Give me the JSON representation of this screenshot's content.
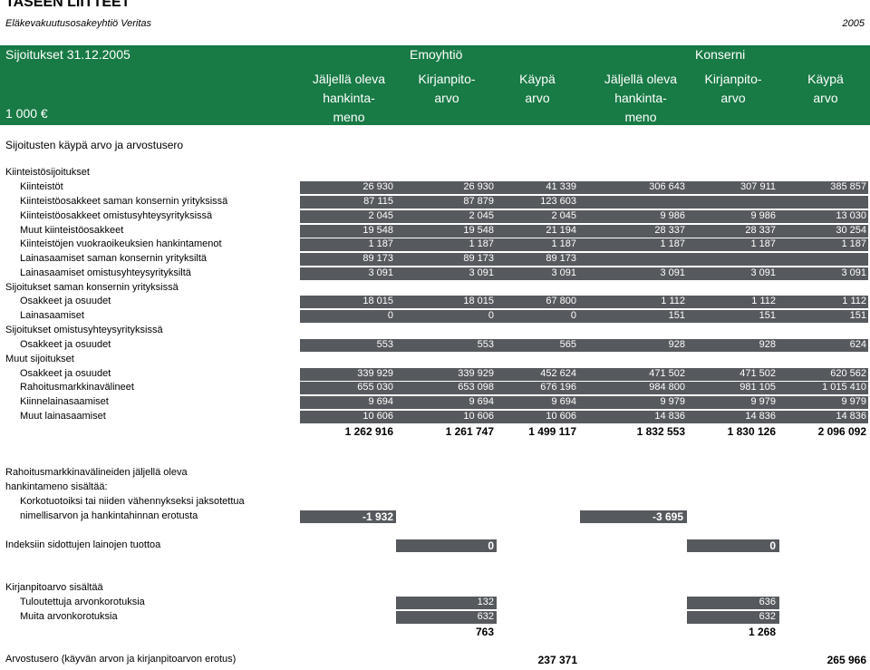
{
  "header": {
    "title": "TASEEN LIITTEET",
    "subtitle": "Eläkevakuutusosakeyhtiö Veritas",
    "year": "2005"
  },
  "table_header": {
    "title": "Sijoitukset 31.12.2005",
    "group_parent": "Emoyhtiö",
    "group_consolidated": "Konserni",
    "unit": "1 000 €",
    "col_remaining_1": "Jäljellä oleva",
    "col_remaining_2": "hankinta-",
    "col_remaining_3": "meno",
    "col_book_1": "Kirjanpito-",
    "col_book_2": "arvo",
    "col_fair_1": "Käypä",
    "col_fair_2": "arvo"
  },
  "section_title": "Sijoitusten käypä arvo ja arvostusero",
  "rows": [
    {
      "label": "Kiinteistösijoitukset",
      "indent": 0,
      "values": []
    },
    {
      "label": "Kiinteistöt",
      "indent": 1,
      "values": [
        "26 930",
        "26 930",
        "41 339",
        "306 643",
        "307 911",
        "385 857"
      ]
    },
    {
      "label": "Kiinteistöosakkeet saman konsernin yrityksissä",
      "indent": 1,
      "values": [
        "87 115",
        "87 879",
        "123 603",
        "",
        "",
        ""
      ]
    },
    {
      "label": "Kiinteistöosakkeet omistusyhteysyrityksissä",
      "indent": 1,
      "values": [
        "2 045",
        "2 045",
        "2 045",
        "9 986",
        "9 986",
        "13 030"
      ]
    },
    {
      "label": "Muut kiinteistöosakkeet",
      "indent": 1,
      "values": [
        "19 548",
        "19 548",
        "21 194",
        "28 337",
        "28 337",
        "30 254"
      ]
    },
    {
      "label": "Kiinteistöjen vuokraoikeuksien hankintamenot",
      "indent": 1,
      "values": [
        "1 187",
        "1 187",
        "1 187",
        "1 187",
        "1 187",
        "1 187"
      ]
    },
    {
      "label": "Lainasaamiset saman konsernin yrityksiltä",
      "indent": 1,
      "values": [
        "89 173",
        "89 173",
        "89 173",
        "",
        "",
        ""
      ]
    },
    {
      "label": "Lainasaamiset omistusyhteysyrityksiltä",
      "indent": 1,
      "values": [
        "3 091",
        "3 091",
        "3 091",
        "3 091",
        "3 091",
        "3 091"
      ]
    },
    {
      "label": "Sijoitukset saman konsernin yrityksissä",
      "indent": 0,
      "values": []
    },
    {
      "label": "Osakkeet ja osuudet",
      "indent": 1,
      "values": [
        "18 015",
        "18 015",
        "67 800",
        "1 112",
        "1 112",
        "1 112"
      ]
    },
    {
      "label": "Lainasaamiset",
      "indent": 1,
      "values": [
        "0",
        "0",
        "0",
        "151",
        "151",
        "151"
      ]
    },
    {
      "label": "Sijoitukset omistusyhteysyrityksissä",
      "indent": 0,
      "values": []
    },
    {
      "label": "Osakkeet ja osuudet",
      "indent": 1,
      "values": [
        "553",
        "553",
        "565",
        "928",
        "928",
        "624"
      ]
    },
    {
      "label": "Muut sijoitukset",
      "indent": 0,
      "values": []
    },
    {
      "label": "Osakkeet ja osuudet",
      "indent": 1,
      "values": [
        "339 929",
        "339 929",
        "452 624",
        "471 502",
        "471 502",
        "620 562"
      ]
    },
    {
      "label": "Rahoitusmarkkinavälineet",
      "indent": 1,
      "values": [
        "655 030",
        "653 098",
        "676 196",
        "984 800",
        "981 105",
        "1 015 410"
      ]
    },
    {
      "label": "Kiinnelainasaamiset",
      "indent": 1,
      "values": [
        "9 694",
        "9 694",
        "9 694",
        "9 979",
        "9 979",
        "9 979"
      ]
    },
    {
      "label": "Muut lainasaamiset",
      "indent": 1,
      "values": [
        "10 606",
        "10 606",
        "10 606",
        "14 836",
        "14 836",
        "14 836"
      ]
    }
  ],
  "totals": [
    "1 262 916",
    "1 261 747",
    "1 499 117",
    "1 832 553",
    "1 830 126",
    "2 096 092"
  ],
  "note_remaining": {
    "line1": "Rahoitusmarkkinavälineiden jäljellä oleva",
    "line2": "hankintameno sisältää:",
    "line3": "Korkotuotoiksi tai niiden vähennykseksi jaksotettua",
    "line4": "nimellisarvon ja hankintahinnan erotusta",
    "parent_value": "-1 932",
    "consolidated_value": "-3 695"
  },
  "note_index": {
    "label": "Indeksiin sidottujen lainojen tuottoa",
    "parent_value": "0",
    "consolidated_value": "0"
  },
  "note_book": {
    "label": "Kirjanpitoarvo sisältää",
    "item1_label": "Tuloutettuja arvonkorotuksia",
    "item1_parent": "132",
    "item1_consolidated": "636",
    "item2_label": "Muita arvonkorotuksia",
    "item2_parent": "632",
    "item2_consolidated": "632",
    "total_parent": "763",
    "total_consolidated": "1 268"
  },
  "valuation_difference": {
    "label": "Arvostusero (käyvän arvon ja kirjanpitoarvon erotus)",
    "parent_value": "237 371",
    "consolidated_value": "265 966"
  },
  "colors": {
    "header_green": "#187a45",
    "cell_gray": "#56595d"
  }
}
